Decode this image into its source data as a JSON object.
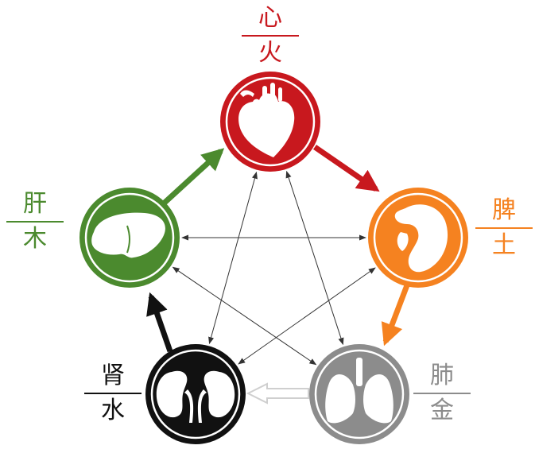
{
  "elements": [
    {
      "key": "fire",
      "organ": "心",
      "element": "火",
      "color": "#c8181e"
    },
    {
      "key": "earth",
      "organ": "脾",
      "element": "土",
      "color": "#f58220"
    },
    {
      "key": "metal",
      "organ": "肺",
      "element": "金",
      "color": "#8c8c8c"
    },
    {
      "key": "water",
      "organ": "肾",
      "element": "水",
      "color": "#111111"
    },
    {
      "key": "wood",
      "organ": "肝",
      "element": "木",
      "color": "#4b8a2e"
    }
  ],
  "icons": {
    "fire": "heart-icon",
    "earth": "spleen-icon",
    "metal": "lungs-icon",
    "water": "kidneys-icon",
    "wood": "liver-icon"
  },
  "arrow_hollow_color": "#cfcfcf",
  "star_line_color": "#333333"
}
